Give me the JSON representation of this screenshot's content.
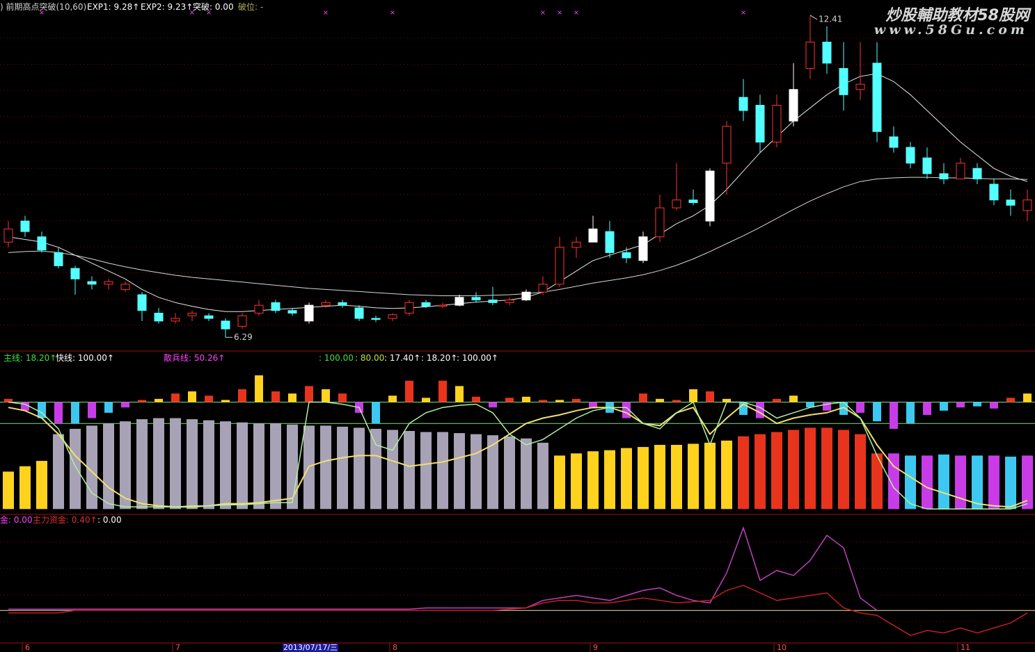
{
  "watermark": {
    "title": "炒股輔助教材58股网",
    "url": "www.58Gu.com"
  },
  "chart_data": [
    {
      "type": "candlestick",
      "legend": [
        {
          "text": ") 前期高点突破(10,60)",
          "color": "#d0d0d0"
        },
        {
          "text": "EXP1: 9.28↑",
          "color": "#ffffff"
        },
        {
          "text": "EXP2: 9.23↑",
          "color": "#ffffff"
        },
        {
          "text": "突破: 0.00",
          "color": "#ffffff"
        },
        {
          "text": "破位: -",
          "color": "#b0b060"
        }
      ],
      "open": [
        8.1,
        8.5,
        8.2,
        7.9,
        7.6,
        7.35,
        7.3,
        7.2,
        7.1,
        6.75,
        6.6,
        6.7,
        6.7,
        6.6,
        6.5,
        6.75,
        6.95,
        6.8,
        6.6,
        6.9,
        6.95,
        6.85,
        6.65,
        6.65,
        6.75,
        6.95,
        6.88,
        6.9,
        7.05,
        7.0,
        6.95,
        7.0,
        7.15,
        7.3,
        8.0,
        8.1,
        8.3,
        7.9,
        7.75,
        8.2,
        8.75,
        8.9,
        8.5,
        9.6,
        10.85,
        10.7,
        10.0,
        10.4,
        11.4,
        11.9,
        11.4,
        11.0,
        11.5,
        10.1,
        9.9,
        9.7,
        9.4,
        9.3,
        9.5,
        9.2,
        8.9,
        8.7
      ],
      "high": [
        8.5,
        8.6,
        8.3,
        8.0,
        7.65,
        7.45,
        7.4,
        7.35,
        7.15,
        6.85,
        6.75,
        6.8,
        6.75,
        6.65,
        6.75,
        7.0,
        7.0,
        6.85,
        6.95,
        7.0,
        7.0,
        6.9,
        6.7,
        6.75,
        7.0,
        7.0,
        6.95,
        7.1,
        7.15,
        7.25,
        7.05,
        7.2,
        7.45,
        8.2,
        8.2,
        8.6,
        8.5,
        8.0,
        8.3,
        9.0,
        9.6,
        9.1,
        9.5,
        10.4,
        11.2,
        10.9,
        10.9,
        11.5,
        12.41,
        12.2,
        11.9,
        11.9,
        11.9,
        10.3,
        10.0,
        9.9,
        9.6,
        9.7,
        9.6,
        9.3,
        9.1,
        9.1
      ],
      "low": [
        8.0,
        8.2,
        7.9,
        7.6,
        7.1,
        7.2,
        7.2,
        7.15,
        6.6,
        6.55,
        6.55,
        6.6,
        6.6,
        6.29,
        6.45,
        6.7,
        6.75,
        6.7,
        6.55,
        6.85,
        6.85,
        6.6,
        6.58,
        6.6,
        6.7,
        6.85,
        6.85,
        6.88,
        6.95,
        6.9,
        6.9,
        6.98,
        7.1,
        7.25,
        7.8,
        8.1,
        7.8,
        7.7,
        7.7,
        8.1,
        8.7,
        8.8,
        8.4,
        9.0,
        10.4,
        9.8,
        9.9,
        10.3,
        11.2,
        11.3,
        10.6,
        10.8,
        10.0,
        9.8,
        9.5,
        9.3,
        9.2,
        9.3,
        9.2,
        8.8,
        8.6,
        8.5
      ],
      "close": [
        8.35,
        8.3,
        7.95,
        7.65,
        7.4,
        7.3,
        7.35,
        7.3,
        6.8,
        6.6,
        6.65,
        6.75,
        6.65,
        6.45,
        6.7,
        6.9,
        6.8,
        6.75,
        6.9,
        6.95,
        6.9,
        6.65,
        6.63,
        6.72,
        6.95,
        6.88,
        6.9,
        7.05,
        7.0,
        6.95,
        7.0,
        7.15,
        7.3,
        8.0,
        8.1,
        8.35,
        7.9,
        7.8,
        8.2,
        8.75,
        8.9,
        8.85,
        9.45,
        10.3,
        10.6,
        10.0,
        10.7,
        11.0,
        11.9,
        11.5,
        10.9,
        11.1,
        10.2,
        9.9,
        9.6,
        9.4,
        9.3,
        9.6,
        9.3,
        8.9,
        8.8,
        8.9
      ],
      "up_color": "#ff3232",
      "down_color": "#54ffff",
      "highlight_color": "#ffffff",
      "highlight": [
        18,
        27,
        31,
        35,
        38,
        42,
        47
      ],
      "ylim": [
        6.03,
        12.7
      ],
      "grid": true,
      "signal_symbol": "×",
      "signal_color": "#ff40ff",
      "signal_at": [
        2,
        11,
        12,
        19,
        23,
        32,
        33,
        34,
        44
      ],
      "series": [
        {
          "color": "#e8e8e8",
          "values": [
            8.2,
            8.15,
            8.1,
            8.0,
            7.85,
            7.7,
            7.55,
            7.4,
            7.2,
            7.05,
            6.95,
            6.88,
            6.82,
            6.78,
            6.78,
            6.8,
            6.82,
            6.84,
            6.86,
            6.88,
            6.9,
            6.88,
            6.85,
            6.84,
            6.85,
            6.87,
            6.9,
            6.93,
            6.96,
            6.98,
            7.0,
            7.05,
            7.15,
            7.35,
            7.55,
            7.75,
            7.85,
            7.95,
            8.05,
            8.25,
            8.45,
            8.6,
            8.8,
            9.1,
            9.45,
            9.8,
            10.1,
            10.4,
            10.65,
            10.9,
            11.1,
            11.25,
            11.3,
            11.15,
            10.9,
            10.6,
            10.3,
            10.0,
            9.75,
            9.5,
            9.35,
            9.25
          ]
        },
        {
          "color": "#d8d8d8",
          "values": [
            7.9,
            7.92,
            7.93,
            7.9,
            7.85,
            7.78,
            7.7,
            7.63,
            7.57,
            7.52,
            7.47,
            7.43,
            7.4,
            7.37,
            7.34,
            7.31,
            7.28,
            7.25,
            7.22,
            7.2,
            7.18,
            7.16,
            7.14,
            7.12,
            7.1,
            7.09,
            7.08,
            7.08,
            7.08,
            7.09,
            7.1,
            7.12,
            7.15,
            7.2,
            7.26,
            7.32,
            7.37,
            7.42,
            7.48,
            7.56,
            7.66,
            7.78,
            7.92,
            8.07,
            8.22,
            8.38,
            8.55,
            8.72,
            8.88,
            9.02,
            9.15,
            9.25,
            9.3,
            9.32,
            9.33,
            9.33,
            9.32,
            9.32,
            9.31,
            9.3,
            9.3,
            9.29
          ]
        }
      ]
    },
    {
      "type": "indicator",
      "legend": [
        {
          "text": "主线: 18.20↑",
          "color": "#40e040"
        },
        {
          "text": "快线: 100.00↑",
          "color": "#ffffff"
        },
        {
          "text": "散兵线: 50.26↑",
          "color": "#ff40ff"
        },
        {
          "text": ": 100.00",
          "color": "#40e040"
        },
        {
          "text": ": 80.00",
          "color": "#c0e040"
        },
        {
          "text": ": 17.40↑",
          "color": "#ffffff"
        },
        {
          "text": ": 18.20↑",
          "color": "#ffffff"
        },
        {
          "text": ": 100.00↑",
          "color": "#ffffff"
        }
      ],
      "ylim": [
        -5,
        125
      ],
      "ref_lines": [
        100,
        80
      ],
      "ref_color": "#80e080",
      "hist": {
        "pos_colors": [
          "#e8341c",
          "#ffd21e"
        ],
        "neg_colors": [
          "#3cc8f0",
          "#c83ce8"
        ],
        "values": [
          3,
          -8,
          -15,
          -20,
          -20,
          -15,
          -10,
          -5,
          2,
          3,
          8,
          10,
          6,
          2,
          12,
          25,
          10,
          8,
          15,
          12,
          8,
          -10,
          -20,
          6,
          20,
          4,
          20,
          15,
          5,
          -5,
          4,
          5,
          2,
          2,
          3,
          -6,
          -10,
          -15,
          8,
          3,
          2,
          12,
          10,
          3,
          -12,
          -15,
          3,
          6,
          -5,
          -8,
          -12,
          -10,
          -18,
          -25,
          -20,
          -12,
          -8,
          -5,
          -4,
          -6,
          4,
          8
        ]
      },
      "bars": {
        "values": [
          35,
          40,
          45,
          70,
          75,
          78,
          80,
          82,
          84,
          85,
          85,
          84,
          83,
          82,
          81,
          80,
          80,
          79,
          78,
          78,
          77,
          76,
          75,
          74,
          73,
          72,
          72,
          71,
          70,
          69,
          68,
          66,
          62,
          50,
          52,
          54,
          55,
          57,
          58,
          60,
          60,
          61,
          62,
          64,
          68,
          70,
          72,
          74,
          76,
          76,
          74,
          70,
          52,
          52,
          50,
          50,
          51,
          50,
          50,
          50,
          49,
          50
        ],
        "colors": [
          "#ffd21e",
          "#ffd21e",
          "#ffd21e",
          "#a8a2b6",
          "#a8a2b6",
          "#a8a2b6",
          "#a8a2b6",
          "#a8a2b6",
          "#a8a2b6",
          "#a8a2b6",
          "#a8a2b6",
          "#a8a2b6",
          "#a8a2b6",
          "#a8a2b6",
          "#a8a2b6",
          "#a8a2b6",
          "#a8a2b6",
          "#a8a2b6",
          "#a8a2b6",
          "#a8a2b6",
          "#a8a2b6",
          "#a8a2b6",
          "#a8a2b6",
          "#a8a2b6",
          "#a8a2b6",
          "#a8a2b6",
          "#a8a2b6",
          "#a8a2b6",
          "#a8a2b6",
          "#a8a2b6",
          "#a8a2b6",
          "#a8a2b6",
          "#a8a2b6",
          "#ffd21e",
          "#ffd21e",
          "#ffd21e",
          "#ffd21e",
          "#ffd21e",
          "#ffd21e",
          "#ffd21e",
          "#ffd21e",
          "#ffd21e",
          "#ffd21e",
          "#ffd21e",
          "#e8341c",
          "#e8341c",
          "#e8341c",
          "#e8341c",
          "#e8341c",
          "#e8341c",
          "#e8341c",
          "#e8341c",
          "#e8341c",
          "#c83ce8",
          "#3cc8f0",
          "#c83ce8",
          "#3cc8f0",
          "#c83ce8",
          "#3cc8f0",
          "#c83ce8",
          "#3cc8f0",
          "#c83ce8"
        ]
      },
      "series": [
        {
          "color": "#f0e070",
          "values": [
            95,
            92,
            85,
            70,
            50,
            35,
            20,
            10,
            5,
            3,
            2,
            2,
            3,
            5,
            5,
            6,
            8,
            10,
            40,
            45,
            48,
            50,
            50,
            45,
            40,
            42,
            44,
            48,
            52,
            60,
            70,
            80,
            85,
            88,
            92,
            95,
            95,
            90,
            80,
            78,
            90,
            95,
            70,
            85,
            98,
            90,
            80,
            85,
            88,
            90,
            95,
            85,
            60,
            40,
            30,
            20,
            15,
            10,
            5,
            3,
            2,
            8
          ]
        },
        {
          "color": "#b0f0a0",
          "values": [
            100,
            98,
            90,
            75,
            40,
            15,
            5,
            2,
            2,
            2,
            2,
            3,
            3,
            4,
            4,
            5,
            6,
            6,
            100,
            100,
            98,
            95,
            60,
            55,
            80,
            90,
            95,
            97,
            98,
            90,
            70,
            60,
            65,
            75,
            85,
            92,
            95,
            95,
            80,
            75,
            90,
            100,
            60,
            100,
            100,
            95,
            85,
            90,
            95,
            98,
            100,
            85,
            50,
            20,
            5,
            0,
            0,
            0,
            0,
            0,
            0,
            5
          ]
        }
      ]
    },
    {
      "type": "line",
      "legend": [
        {
          "text": "金: 0.00",
          "color": "#ff40ff"
        },
        {
          "text": "主力资金: 0.40↑",
          "color": "#e03030"
        },
        {
          "text": ": 0.00",
          "color": "#ffffff"
        }
      ],
      "ylim": [
        -1.3,
        3.7
      ],
      "ref_lines": [
        0
      ],
      "ref_color": "#f0e0a0",
      "series": [
        {
          "color": "#c040c0",
          "values": [
            0.05,
            0.05,
            0.05,
            0.05,
            0.05,
            0.05,
            0.05,
            0.05,
            0.05,
            0.05,
            0.05,
            0.05,
            0.05,
            0.05,
            0.05,
            0.05,
            0.05,
            0.05,
            0.05,
            0.05,
            0.05,
            0.05,
            0.05,
            0.05,
            0.05,
            0.1,
            0.1,
            0.1,
            0.1,
            0.1,
            0.1,
            0.1,
            0.4,
            0.5,
            0.6,
            0.5,
            0.4,
            0.6,
            0.8,
            0.9,
            0.6,
            0.4,
            0.3,
            1.5,
            3.3,
            1.2,
            1.6,
            1.4,
            2.0,
            3.0,
            2.5,
            0.5,
            0,
            null,
            null,
            null,
            null,
            null,
            null,
            null,
            null,
            null
          ]
        },
        {
          "color": "#c02020",
          "values": [
            -0.1,
            -0.1,
            -0.1,
            -0.1,
            0,
            0,
            0,
            0,
            0,
            0,
            0,
            0,
            0,
            0,
            0,
            0,
            0,
            0,
            0,
            0,
            0,
            0,
            0,
            0,
            0,
            0,
            0,
            0,
            0,
            0,
            0.05,
            0.1,
            0.3,
            0.4,
            0.4,
            0.3,
            0.3,
            0.4,
            0.5,
            0.4,
            0.3,
            0.35,
            0.4,
            0.8,
            1.0,
            0.7,
            0.4,
            0.5,
            0.6,
            0.7,
            0.1,
            -0.1,
            -0.2,
            -0.6,
            -1.0,
            -0.8,
            -0.9,
            -0.7,
            -0.9,
            -0.7,
            -0.5,
            -0.1
          ]
        }
      ],
      "categories": [
        null,
        "6",
        null,
        null,
        null,
        null,
        null,
        null,
        null,
        null,
        "7",
        null,
        null,
        null,
        null,
        null,
        null,
        null,
        "2013/07/17/三",
        null,
        null,
        null,
        null,
        "8",
        null,
        null,
        null,
        null,
        null,
        null,
        null,
        null,
        null,
        null,
        null,
        "9",
        null,
        null,
        null,
        null,
        null,
        null,
        null,
        null,
        null,
        null,
        "10",
        null,
        null,
        null,
        null,
        null,
        null,
        null,
        null,
        null,
        null,
        "11",
        null,
        null,
        null,
        null
      ],
      "category_highlight": [
        18
      ],
      "category_color": "#ff5050"
    }
  ]
}
